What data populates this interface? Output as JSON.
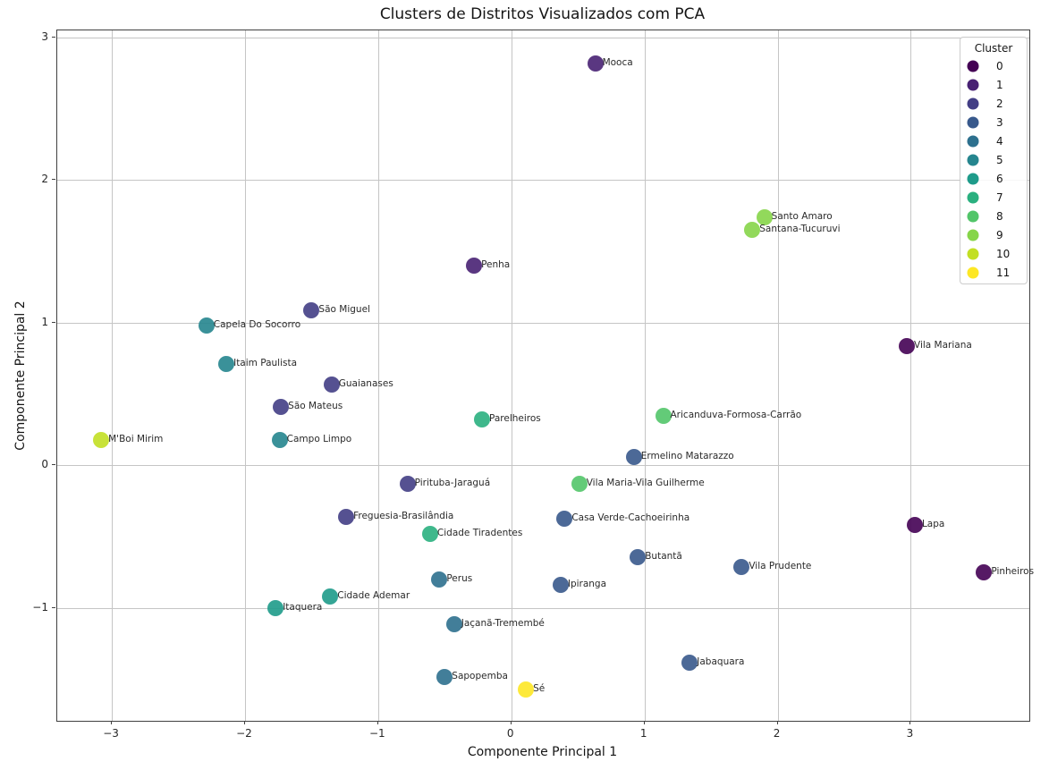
{
  "title": "Clusters de Distritos Visualizados com PCA",
  "xlabel": "Componente Principal 1",
  "ylabel": "Componente Principal 2",
  "legend": {
    "title": "Cluster",
    "entries": [
      {
        "label": "0",
        "color": "#440154"
      },
      {
        "label": "1",
        "color": "#482173"
      },
      {
        "label": "2",
        "color": "#433e85"
      },
      {
        "label": "3",
        "color": "#38598c"
      },
      {
        "label": "4",
        "color": "#2d708e"
      },
      {
        "label": "5",
        "color": "#25858e"
      },
      {
        "label": "6",
        "color": "#1e9b8a"
      },
      {
        "label": "7",
        "color": "#2ab07f"
      },
      {
        "label": "8",
        "color": "#52c569"
      },
      {
        "label": "9",
        "color": "#86d549"
      },
      {
        "label": "10",
        "color": "#c2df23"
      },
      {
        "label": "11",
        "color": "#fde725"
      }
    ]
  },
  "chart_data": {
    "type": "scatter",
    "title": "Clusters de Distritos Visualizados com PCA",
    "xlabel": "Componente Principal 1",
    "ylabel": "Componente Principal 2",
    "xlim": [
      -3.41,
      3.89
    ],
    "ylim": [
      -1.79,
      3.05
    ],
    "xticks": [
      -3,
      -2,
      -1,
      0,
      1,
      2,
      3
    ],
    "yticks": [
      -1,
      0,
      1,
      2,
      3
    ],
    "grid": true,
    "legend_position": "upper right",
    "point_alpha": 0.9,
    "points": [
      {
        "label": "Mooca",
        "x": 0.63,
        "y": 2.82,
        "cluster": 1
      },
      {
        "label": "Santo Amaro",
        "x": 1.9,
        "y": 1.74,
        "cluster": 9
      },
      {
        "label": "Santana-Tucuruvi",
        "x": 1.81,
        "y": 1.65,
        "cluster": 9
      },
      {
        "label": "Penha",
        "x": -0.28,
        "y": 1.4,
        "cluster": 1
      },
      {
        "label": "São Miguel",
        "x": -1.5,
        "y": 1.09,
        "cluster": 2
      },
      {
        "label": "Capela Do Socorro",
        "x": -2.29,
        "y": 0.98,
        "cluster": 5
      },
      {
        "label": "Vila Mariana",
        "x": 2.97,
        "y": 0.84,
        "cluster": 0
      },
      {
        "label": "Itaim Paulista",
        "x": -2.14,
        "y": 0.71,
        "cluster": 5
      },
      {
        "label": "Guaianases",
        "x": -1.35,
        "y": 0.57,
        "cluster": 2
      },
      {
        "label": "São Mateus",
        "x": -1.73,
        "y": 0.41,
        "cluster": 2
      },
      {
        "label": "Aricanduva-Formosa-Carrão",
        "x": 1.14,
        "y": 0.35,
        "cluster": 8
      },
      {
        "label": "Parelheiros",
        "x": -0.22,
        "y": 0.32,
        "cluster": 7
      },
      {
        "label": "M'Boi Mirim",
        "x": -3.08,
        "y": 0.18,
        "cluster": 10
      },
      {
        "label": "Campo Limpo",
        "x": -1.74,
        "y": 0.18,
        "cluster": 5
      },
      {
        "label": "Ermelino Matarazzo",
        "x": 0.92,
        "y": 0.06,
        "cluster": 3
      },
      {
        "label": "Vila Maria-Vila Guilherme",
        "x": 0.51,
        "y": -0.13,
        "cluster": 8
      },
      {
        "label": "Pirituba-Jaraguá",
        "x": -0.78,
        "y": -0.13,
        "cluster": 2
      },
      {
        "label": "Freguesia-Brasilândia",
        "x": -1.24,
        "y": -0.36,
        "cluster": 2
      },
      {
        "label": "Casa Verde-Cachoeirinha",
        "x": 0.4,
        "y": -0.37,
        "cluster": 3
      },
      {
        "label": "Lapa",
        "x": 3.03,
        "y": -0.42,
        "cluster": 0
      },
      {
        "label": "Cidade Tiradentes",
        "x": -0.61,
        "y": -0.48,
        "cluster": 7
      },
      {
        "label": "Butantã",
        "x": 0.95,
        "y": -0.64,
        "cluster": 3
      },
      {
        "label": "Vila Prudente",
        "x": 1.73,
        "y": -0.71,
        "cluster": 3
      },
      {
        "label": "Pinheiros",
        "x": 3.55,
        "y": -0.75,
        "cluster": 0
      },
      {
        "label": "Perus",
        "x": -0.54,
        "y": -0.8,
        "cluster": 4
      },
      {
        "label": "Ipiranga",
        "x": 0.37,
        "y": -0.84,
        "cluster": 3
      },
      {
        "label": "Cidade Ademar",
        "x": -1.36,
        "y": -0.92,
        "cluster": 6
      },
      {
        "label": "Itaquera",
        "x": -1.77,
        "y": -1.0,
        "cluster": 6
      },
      {
        "label": "Jaçanã-Tremembé",
        "x": -0.43,
        "y": -1.11,
        "cluster": 4
      },
      {
        "label": "Jabaquara",
        "x": 1.34,
        "y": -1.38,
        "cluster": 3
      },
      {
        "label": "Sapopemba",
        "x": -0.5,
        "y": -1.48,
        "cluster": 4
      },
      {
        "label": "Sé",
        "x": 0.11,
        "y": -1.57,
        "cluster": 11
      }
    ]
  }
}
